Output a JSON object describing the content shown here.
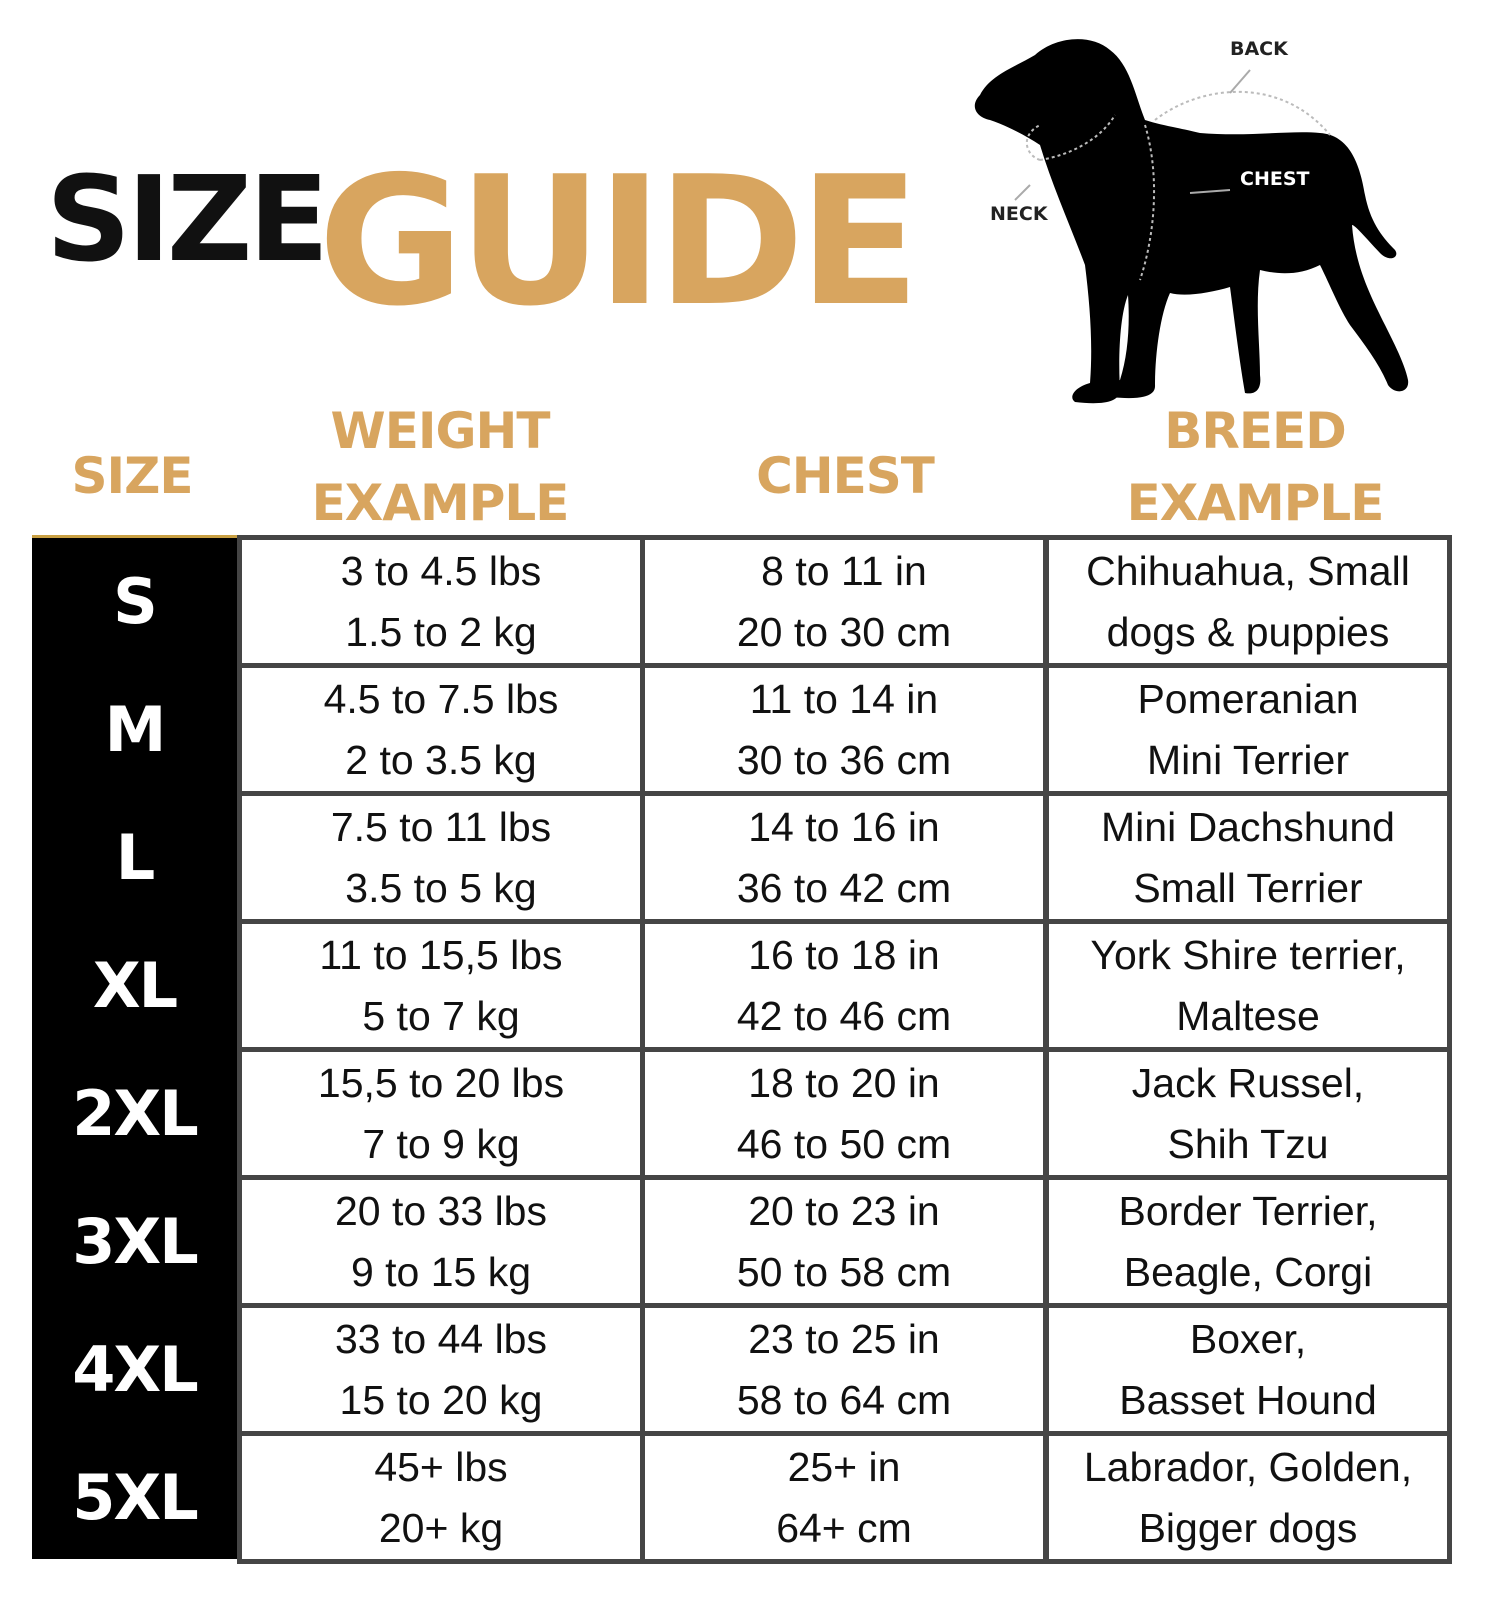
{
  "title": {
    "word1": "SIZE",
    "word2": "GUIDE"
  },
  "diagram": {
    "labels": {
      "back": "BACK",
      "chest": "CHEST",
      "neck": "NECK"
    },
    "icon": "dog-silhouette-icon"
  },
  "colors": {
    "accent": "#d8a55f",
    "size_column": "#000000",
    "grid": "#454545"
  },
  "table": {
    "headers": {
      "size": "SIZE",
      "weight_1": "WEIGHT",
      "weight_2": "EXAMPLE",
      "chest": "CHEST",
      "breed_1": "BREED",
      "breed_2": "EXAMPLE"
    },
    "rows": [
      {
        "size": "S",
        "weight": [
          "3 to 4.5 lbs",
          "1.5 to 2 kg"
        ],
        "chest": [
          "8 to 11 in",
          "20 to 30 cm"
        ],
        "breed": [
          "Chihuahua, Small",
          "dogs & puppies"
        ]
      },
      {
        "size": "M",
        "weight": [
          "4.5 to 7.5 lbs",
          "2 to 3.5 kg"
        ],
        "chest": [
          "11 to 14 in",
          "30 to 36 cm"
        ],
        "breed": [
          "Pomeranian",
          "Mini Terrier"
        ]
      },
      {
        "size": "L",
        "weight": [
          "7.5 to 11 lbs",
          "3.5 to 5 kg"
        ],
        "chest": [
          "14 to 16 in",
          "36 to 42 cm"
        ],
        "breed": [
          "Mini Dachshund",
          "Small Terrier"
        ]
      },
      {
        "size": "XL",
        "weight": [
          "11 to 15,5 lbs",
          "5 to 7 kg"
        ],
        "chest": [
          "16 to 18 in",
          "42 to 46 cm"
        ],
        "breed": [
          "York Shire terrier,",
          "Maltese"
        ]
      },
      {
        "size": "2XL",
        "weight": [
          "15,5 to 20 lbs",
          "7 to 9 kg"
        ],
        "chest": [
          "18 to 20 in",
          "46 to 50 cm"
        ],
        "breed": [
          "Jack Russel,",
          "Shih Tzu"
        ]
      },
      {
        "size": "3XL",
        "weight": [
          "20 to 33 lbs",
          "9 to 15 kg"
        ],
        "chest": [
          "20 to 23 in",
          "50 to 58 cm"
        ],
        "breed": [
          "Border Terrier,",
          "Beagle, Corgi"
        ]
      },
      {
        "size": "4XL",
        "weight": [
          "33 to 44 lbs",
          "15 to 20 kg"
        ],
        "chest": [
          "23 to 25 in",
          "58 to 64 cm"
        ],
        "breed": [
          "Boxer,",
          "Basset Hound"
        ]
      },
      {
        "size": "5XL",
        "weight": [
          "45+ lbs",
          "20+ kg"
        ],
        "chest": [
          "25+ in",
          "64+ cm"
        ],
        "breed": [
          "Labrador, Golden,",
          "Bigger dogs"
        ]
      }
    ]
  }
}
